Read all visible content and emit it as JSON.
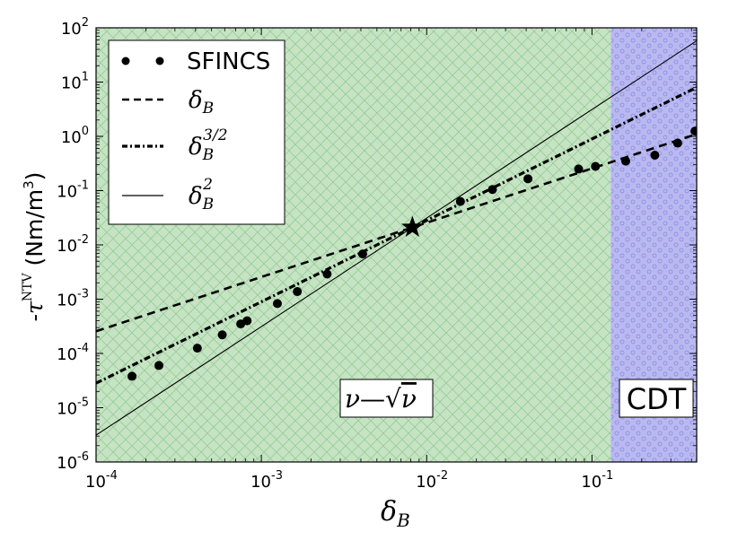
{
  "chart_data": {
    "type": "scatter",
    "x_scale": "log",
    "y_scale": "log",
    "xlim": [
      0.0001,
      0.43
    ],
    "ylim": [
      1e-06,
      100
    ],
    "x_ticks": [
      {
        "value": 0.0001,
        "base": "10",
        "exp": "-4"
      },
      {
        "value": 0.001,
        "base": "10",
        "exp": "-3"
      },
      {
        "value": 0.01,
        "base": "10",
        "exp": "-2"
      },
      {
        "value": 0.1,
        "base": "10",
        "exp": "-1"
      }
    ],
    "y_ticks": [
      {
        "value": 1e-06,
        "base": "10",
        "exp": "-6"
      },
      {
        "value": 1e-05,
        "base": "10",
        "exp": "-5"
      },
      {
        "value": 0.0001,
        "base": "10",
        "exp": "-4"
      },
      {
        "value": 0.001,
        "base": "10",
        "exp": "-3"
      },
      {
        "value": 0.01,
        "base": "10",
        "exp": "-2"
      },
      {
        "value": 0.1,
        "base": "10",
        "exp": "-1"
      },
      {
        "value": 1,
        "base": "10",
        "exp": "0"
      },
      {
        "value": 10,
        "base": "10",
        "exp": "1"
      },
      {
        "value": 100,
        "base": "10",
        "exp": "2"
      }
    ],
    "xlabel": {
      "text": "δ",
      "sub": "B"
    },
    "ylabel": {
      "prefix": "-τ",
      "sup": "NTV",
      "unit": " (Nm/m",
      "unit_sup": "3",
      "unit_end": ")"
    },
    "regions": [
      {
        "label_main": "ν",
        "label_sep": "—",
        "label_sqrt": "ν",
        "x_range": [
          0.0001,
          0.13
        ],
        "color": "#c6e3c4",
        "hatch": "cross"
      },
      {
        "label": "CDT",
        "x_range": [
          0.13,
          0.43
        ],
        "color": "#b9b9f0",
        "hatch": "circles"
      }
    ],
    "reference_point": {
      "x": 0.0082,
      "y": 0.021,
      "marker": "star"
    },
    "series": [
      {
        "name": "SFINCS",
        "style": "markers",
        "points": [
          [
            0.000165,
            3.8e-05
          ],
          [
            0.00024,
            6e-05
          ],
          [
            0.00041,
            0.000125
          ],
          [
            0.00058,
            0.00022
          ],
          [
            0.00075,
            0.00035
          ],
          [
            0.00082,
            0.0004
          ],
          [
            0.00125,
            0.00083
          ],
          [
            0.00165,
            0.00138
          ],
          [
            0.0025,
            0.0029
          ],
          [
            0.0041,
            0.0068
          ],
          [
            0.016,
            0.063
          ],
          [
            0.025,
            0.105
          ],
          [
            0.041,
            0.165
          ],
          [
            0.083,
            0.25
          ],
          [
            0.105,
            0.28
          ],
          [
            0.16,
            0.35
          ],
          [
            0.24,
            0.45
          ],
          [
            0.33,
            0.75
          ],
          [
            0.42,
            1.25
          ]
        ]
      },
      {
        "name_base": "δ",
        "name_sub": "B",
        "name_sup": "",
        "style": "dashed",
        "exponent": 1
      },
      {
        "name_base": "δ",
        "name_sub": "B",
        "name_sup": "3/2",
        "style": "dashdot",
        "exponent": 1.5
      },
      {
        "name_base": "δ",
        "name_sub": "B",
        "name_sup": "2",
        "style": "solid",
        "exponent": 2
      }
    ],
    "legend_placement": "top-left",
    "grid": false
  }
}
